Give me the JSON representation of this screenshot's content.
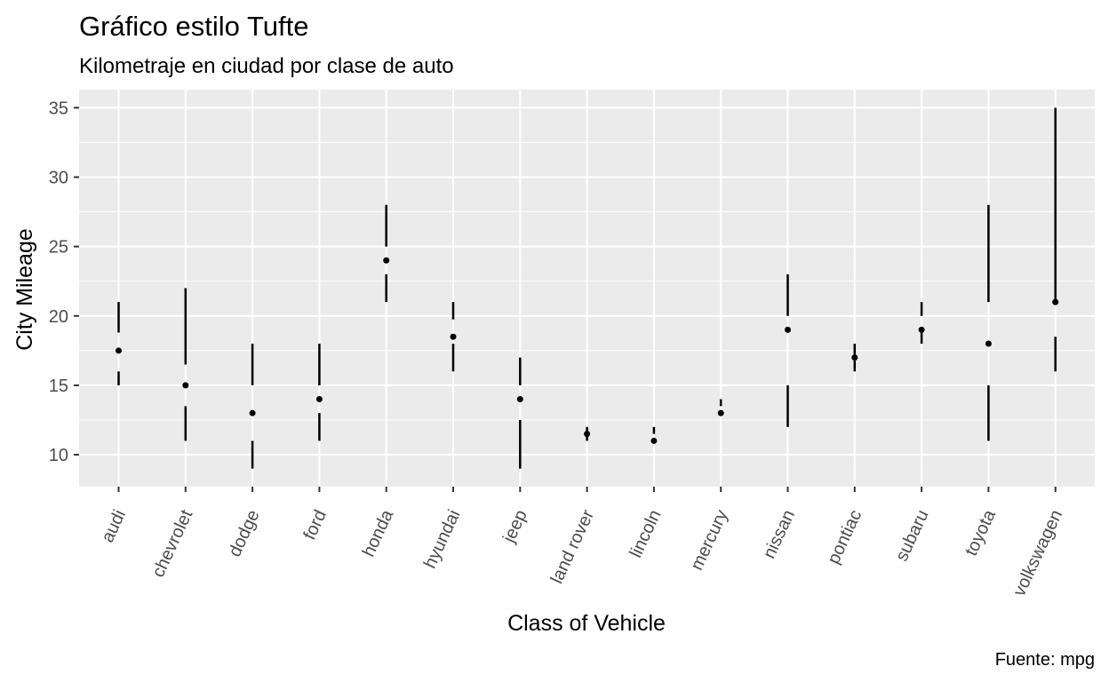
{
  "chart_data": {
    "type": "tufte-boxplot",
    "title": "Gráfico estilo Tufte",
    "subtitle": "Kilometraje en ciudad por clase de auto",
    "xlabel": "Class of Vehicle",
    "ylabel": "City Mileage",
    "caption": "Fuente: mpg",
    "ylim": [
      7.7,
      36.3
    ],
    "yticks": [
      10,
      15,
      20,
      25,
      30,
      35
    ],
    "grid": true,
    "x_tick_rotation_deg": -65,
    "categories": [
      "audi",
      "chevrolet",
      "dodge",
      "ford",
      "honda",
      "hyundai",
      "jeep",
      "land rover",
      "lincoln",
      "mercury",
      "nissan",
      "pontiac",
      "subaru",
      "toyota",
      "volkswagen"
    ],
    "boxes": [
      {
        "min": 15,
        "q1": 16,
        "median": 17.5,
        "q3": 18.8,
        "max": 21
      },
      {
        "min": 11,
        "q1": 13.5,
        "median": 15,
        "q3": 16.5,
        "max": 22
      },
      {
        "min": 9,
        "q1": 11,
        "median": 13,
        "q3": 15,
        "max": 18
      },
      {
        "min": 11,
        "q1": 13,
        "median": 14,
        "q3": 15,
        "max": 18
      },
      {
        "min": 21,
        "q1": 23,
        "median": 24,
        "q3": 25,
        "max": 28
      },
      {
        "min": 16,
        "q1": 18,
        "median": 18.5,
        "q3": 19.75,
        "max": 21
      },
      {
        "min": 9,
        "q1": 12.5,
        "median": 14,
        "q3": 15,
        "max": 17
      },
      {
        "min": 11,
        "q1": 11.5,
        "median": 11.5,
        "q3": 11.5,
        "max": 12
      },
      {
        "min": 11,
        "q1": 11,
        "median": 11,
        "q3": 11.5,
        "max": 12
      },
      {
        "min": 13,
        "q1": 13,
        "median": 13,
        "q3": 13.5,
        "max": 14
      },
      {
        "min": 12,
        "q1": 15,
        "median": 19,
        "q3": 20,
        "max": 23
      },
      {
        "min": 16,
        "q1": 17,
        "median": 17,
        "q3": 17,
        "max": 18
      },
      {
        "min": 18,
        "q1": 19,
        "median": 19,
        "q3": 20,
        "max": 21
      },
      {
        "min": 11,
        "q1": 15,
        "median": 18,
        "q3": 21,
        "max": 28
      },
      {
        "min": 16,
        "q1": 18.5,
        "median": 21,
        "q3": 21,
        "max": 35
      }
    ]
  }
}
